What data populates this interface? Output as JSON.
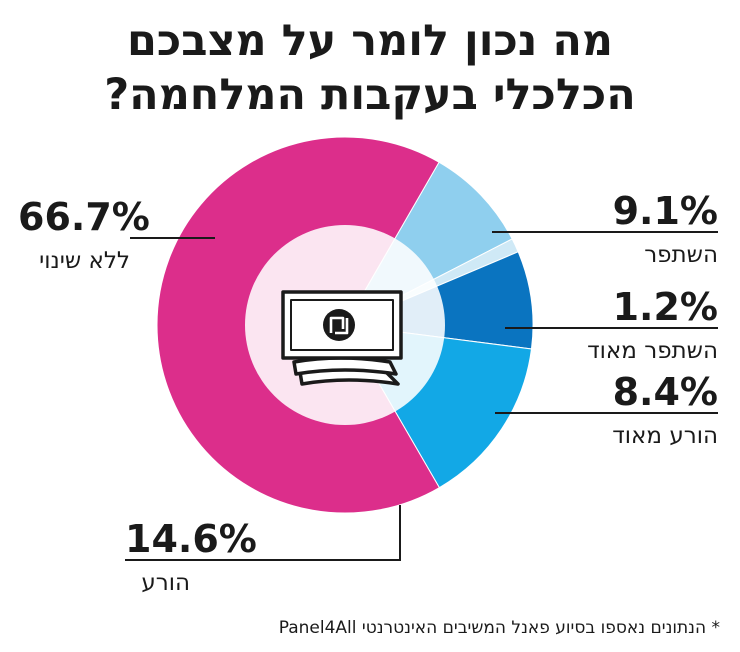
{
  "title": {
    "line1": "מה נכון לומר על מצבכם",
    "line2": "הכלכלי בעקבות המלחמה?"
  },
  "footnote": "* הנתונים נאספו בסיוע פאנל המשיבים האינטרנטי Panel4All",
  "center_icon": "shekel-banknote-icon",
  "chart_data": {
    "type": "pie",
    "title": "מה נכון לומר על מצבכם הכלכלי בעקבות המלחמה?",
    "donut": true,
    "slices": [
      {
        "label": "השתפר",
        "value": 9.1,
        "value_label": "9.1%",
        "color": "#8fcfee"
      },
      {
        "label": "השתפר מאוד",
        "value": 1.2,
        "value_label": "1.2%",
        "color": "#cfe9f6"
      },
      {
        "label": "הורע מאוד",
        "value": 8.4,
        "value_label": "8.4%",
        "color": "#0a74c0"
      },
      {
        "label": "הורע",
        "value": 14.6,
        "value_label": "14.6%",
        "color": "#12a8e6"
      },
      {
        "label": "ללא שינוי",
        "value": 66.7,
        "value_label": "66.7%",
        "color": "#dc2e8b"
      }
    ]
  }
}
